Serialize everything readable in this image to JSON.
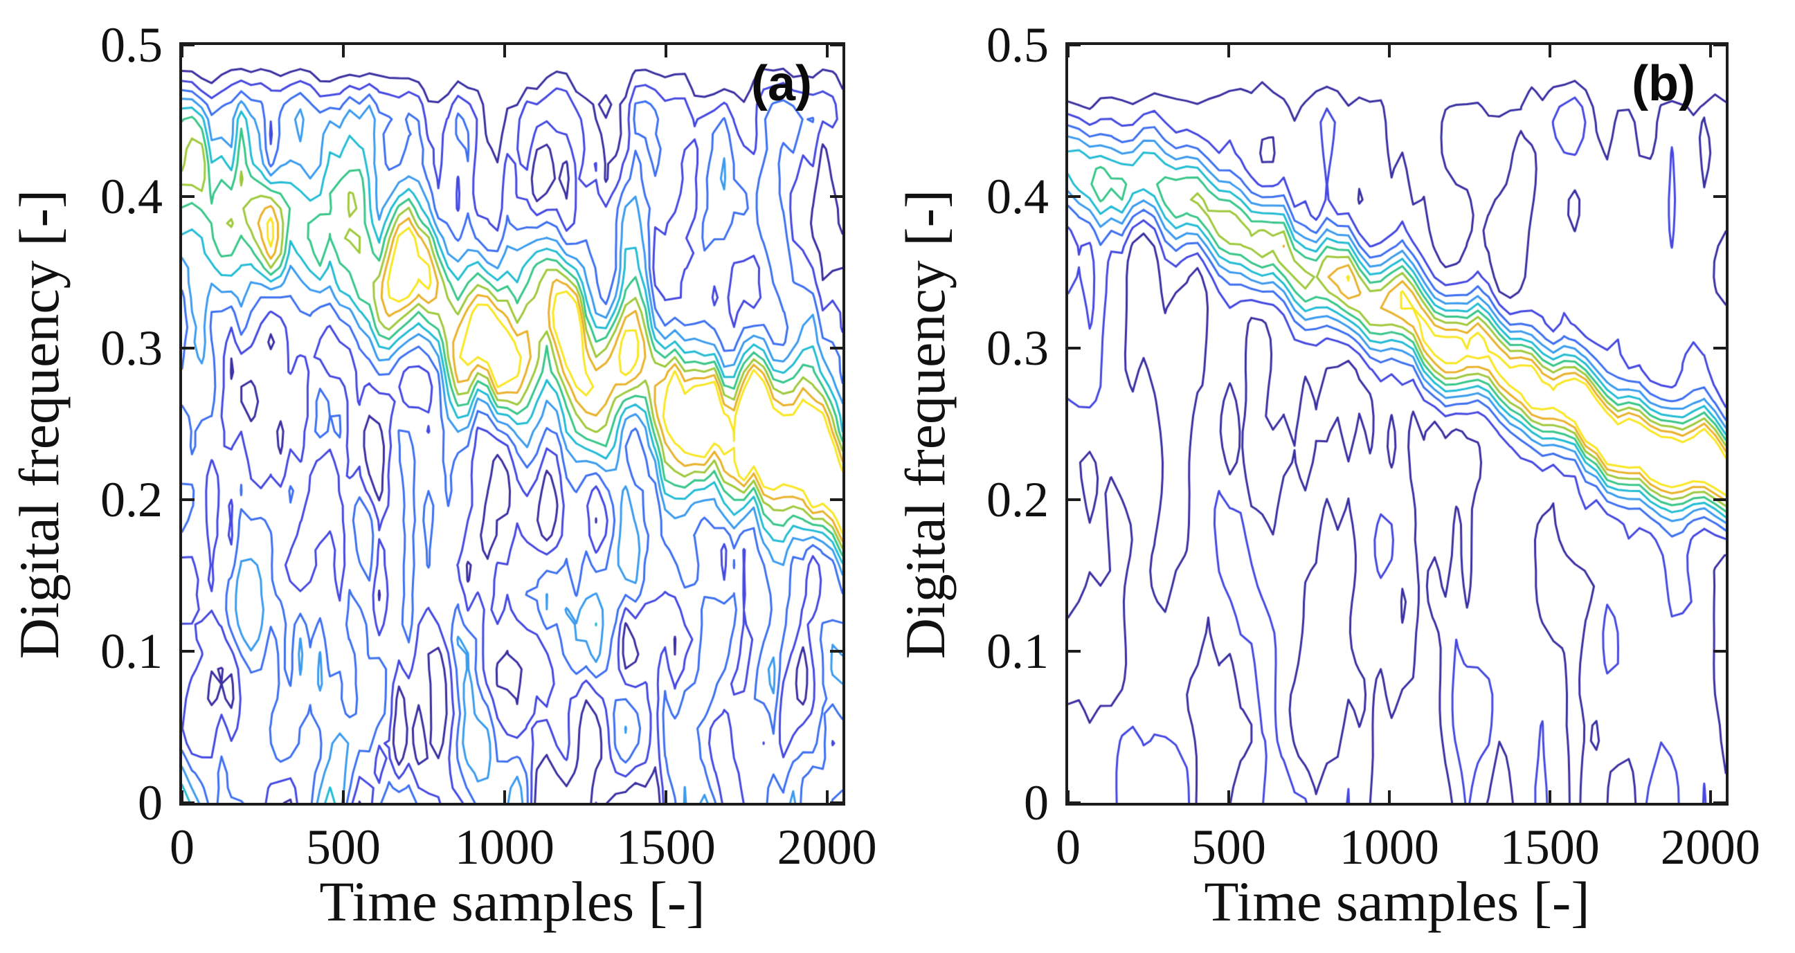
{
  "figure": {
    "background": "#ffffff",
    "axis_color": "#1c1c1c",
    "text_color": "#111111"
  },
  "chart_data": [
    {
      "type": "contour",
      "panel_label": "(a)",
      "xlabel": "Time samples [-]",
      "ylabel": "Digital frequency [-]",
      "xlim": [
        0,
        2048
      ],
      "ylim": [
        0,
        0.5
      ],
      "xticks": [
        0,
        500,
        1000,
        1500,
        2000
      ],
      "xtick_labels": [
        "0",
        "500",
        "1000",
        "1500",
        "2000"
      ],
      "yticks": [
        0,
        0.1,
        0.2,
        0.3,
        0.4,
        0.5
      ],
      "ytick_labels": [
        "0",
        "0.1",
        "0.2",
        "0.3",
        "0.4",
        "0.5"
      ],
      "grid": false,
      "legend": null,
      "levels": [
        0.16,
        0.25,
        0.34,
        0.43,
        0.52,
        0.61,
        0.7,
        0.79,
        0.88
      ],
      "level_colors": [
        "#3a30a2",
        "#4549e0",
        "#3e70f0",
        "#3b9bee",
        "#23bcd4",
        "#38c689",
        "#9fc93c",
        "#eab22b",
        "#f9e623"
      ],
      "ridge": {
        "freq_start": 0.425,
        "freq_end": 0.215,
        "amp_start": 0.48,
        "amp_end": 1.06,
        "sigma": 0.034,
        "wobble": 0.05,
        "noise_mod": 0.55
      },
      "noise": {
        "seed": 20217,
        "amp": 0.6,
        "grid_nx": 68,
        "grid_ny": 52,
        "smooth_x": 1,
        "smooth_y": 2,
        "passes": 2
      },
      "top_gap_freq": 0.455
    },
    {
      "type": "contour",
      "panel_label": "(b)",
      "xlabel": "Time samples [-]",
      "ylabel": "Digital frequency [-]",
      "xlim": [
        0,
        2048
      ],
      "ylim": [
        0,
        0.5
      ],
      "xticks": [
        0,
        500,
        1000,
        1500,
        2000
      ],
      "xtick_labels": [
        "0",
        "500",
        "1000",
        "1500",
        "2000"
      ],
      "yticks": [
        0,
        0.1,
        0.2,
        0.3,
        0.4,
        0.5
      ],
      "ytick_labels": [
        "0",
        "0.1",
        "0.2",
        "0.3",
        "0.4",
        "0.5"
      ],
      "grid": false,
      "legend": null,
      "levels": [
        0.16,
        0.25,
        0.34,
        0.43,
        0.52,
        0.61,
        0.7,
        0.79,
        0.88
      ],
      "level_colors": [
        "#3a30a2",
        "#4549e0",
        "#3e70f0",
        "#3b9bee",
        "#23bcd4",
        "#38c689",
        "#9fc93c",
        "#eab22b",
        "#f9e623"
      ],
      "ridge": {
        "freq_start": 0.428,
        "freq_end": 0.212,
        "amp_start": 0.52,
        "amp_end": 1.12,
        "sigma": 0.021,
        "wobble": 0.022,
        "noise_mod": 0.3
      },
      "noise": {
        "seed": 911,
        "amp": 0.37,
        "grid_nx": 62,
        "grid_ny": 50,
        "smooth_x": 1,
        "smooth_y": 2,
        "passes": 3
      },
      "top_gap_freq": 0.455
    }
  ]
}
